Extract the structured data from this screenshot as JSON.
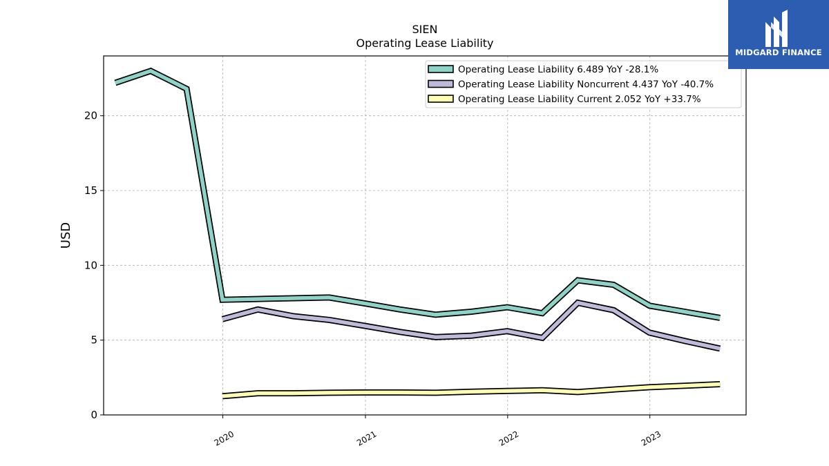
{
  "logo": {
    "text": "MIDGARD FINANCE"
  },
  "chart_data": {
    "type": "line",
    "title": "SIEN",
    "subtitle": "Operating Lease Liability",
    "ylabel": "USD",
    "xlabel": "",
    "xlim": [
      "2019-03-01",
      "2023-09-05"
    ],
    "ylim": [
      0,
      24
    ],
    "yticks": [
      0,
      5,
      10,
      15,
      20
    ],
    "xticks": [
      {
        "date": "2020-01-01",
        "label": "2020"
      },
      {
        "date": "2021-01-01",
        "label": "2021"
      },
      {
        "date": "2022-01-01",
        "label": "2022"
      },
      {
        "date": "2023-01-01",
        "label": "2023"
      }
    ],
    "grid": true,
    "legend": "top-right",
    "series": [
      {
        "name": "Operating Lease Liability  6.489 YoY -28.1%",
        "color": "#8dd3c7",
        "x": [
          "2019-03-31",
          "2019-06-30",
          "2019-09-30",
          "2019-12-31",
          "2020-03-31",
          "2020-06-30",
          "2020-09-30",
          "2020-12-31",
          "2021-03-31",
          "2021-06-30",
          "2021-09-30",
          "2021-12-31",
          "2022-03-31",
          "2022-06-30",
          "2022-09-30",
          "2022-12-31",
          "2023-03-31",
          "2023-06-30"
        ],
        "y": [
          22.2,
          23.0,
          21.8,
          7.7,
          7.75,
          7.8,
          7.85,
          7.45,
          7.05,
          6.7,
          6.9,
          7.2,
          6.8,
          9.0,
          8.7,
          7.3,
          6.9,
          6.489
        ]
      },
      {
        "name": "Operating Lease Liability Noncurrent  4.437 YoY -40.7%",
        "color": "#bebada",
        "x": [
          "2019-12-31",
          "2020-03-31",
          "2020-06-30",
          "2020-09-30",
          "2020-12-31",
          "2021-03-31",
          "2021-06-30",
          "2021-09-30",
          "2021-12-31",
          "2022-03-31",
          "2022-06-30",
          "2022-09-30",
          "2022-12-31",
          "2023-03-31",
          "2023-06-30"
        ],
        "y": [
          6.4,
          7.05,
          6.6,
          6.35,
          5.95,
          5.55,
          5.2,
          5.3,
          5.6,
          5.15,
          7.5,
          7.0,
          5.5,
          4.95,
          4.437
        ]
      },
      {
        "name": "Operating Lease Liability Current  2.052 YoY +33.7%",
        "color": "#ffffb3",
        "x": [
          "2019-12-31",
          "2020-03-31",
          "2020-06-30",
          "2020-09-30",
          "2020-12-31",
          "2021-03-31",
          "2021-06-30",
          "2021-09-30",
          "2021-12-31",
          "2022-03-31",
          "2022-06-30",
          "2022-09-30",
          "2022-12-31",
          "2023-03-31",
          "2023-06-30"
        ],
        "y": [
          1.25,
          1.45,
          1.45,
          1.48,
          1.5,
          1.5,
          1.48,
          1.55,
          1.6,
          1.65,
          1.53,
          1.7,
          1.85,
          1.95,
          2.052
        ]
      }
    ]
  }
}
